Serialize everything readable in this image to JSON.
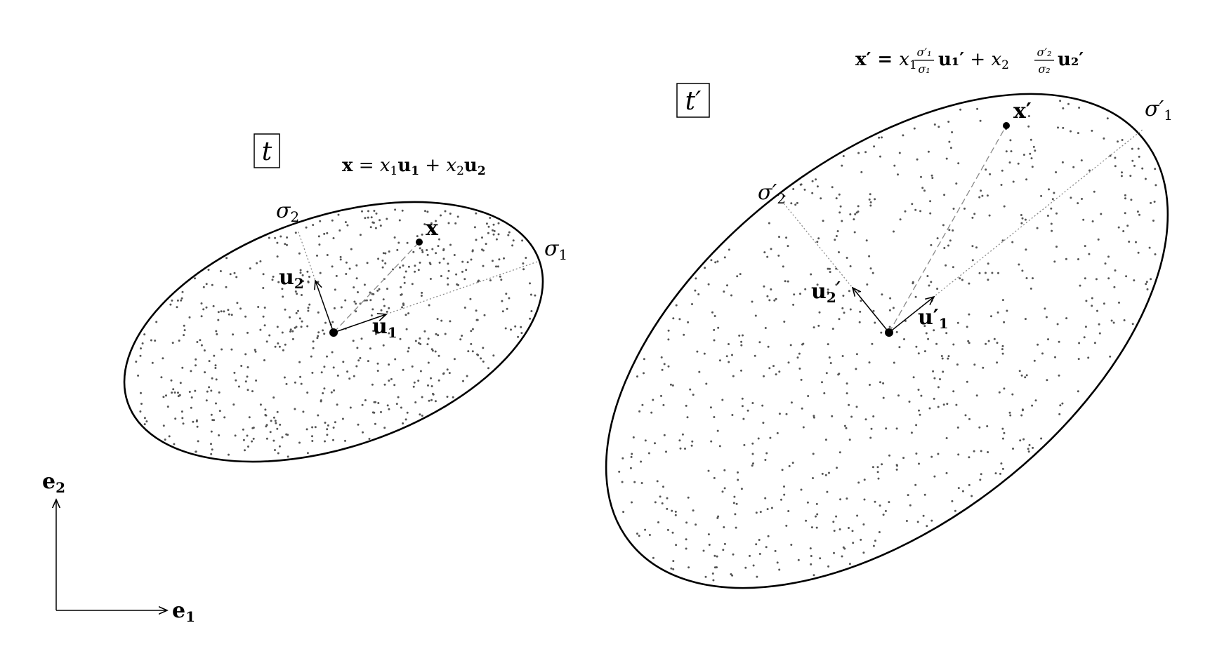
{
  "figure": {
    "left_panel": {
      "box_label": "t",
      "equation": {
        "x": "x",
        "eq": " = ",
        "x1": "x",
        "sub1": "1",
        "u1": "u",
        "u1sub": "1",
        "plus": " + ",
        "x2": "x",
        "sub2": "2",
        "u2": "u",
        "u2sub": "2"
      },
      "sigma1": {
        "sym": "σ",
        "sub": "1"
      },
      "sigma2": {
        "sym": "σ",
        "sub": "2"
      },
      "point_label": "x",
      "u1_label": {
        "sym": "u",
        "sub": "1"
      },
      "u2_label": {
        "sym": "u",
        "sub": "2"
      }
    },
    "right_panel": {
      "box_label": "t′",
      "equation": {
        "lhs": "x′ = ",
        "x1": "x",
        "sub1": "1",
        "frac1_num": "σ′₁",
        "frac1_den": "σ₁",
        "u1": "u₁′",
        "plus": " + ",
        "x2": "x",
        "sub2": "2",
        "frac2_num": "σ′₂",
        "frac2_den": "σ₂",
        "u2": "u₂′"
      },
      "sigma1": {
        "sym": "σ′",
        "sub": "1"
      },
      "sigma2": {
        "sym": "σ′",
        "sub": "2"
      },
      "point_label": "x′",
      "u1_label": {
        "sym": "u′",
        "sub": "1"
      },
      "u2_label": {
        "sym": "u",
        "sub": "2",
        "prime": "′"
      }
    },
    "axes": {
      "e1": {
        "sym": "e",
        "sub": "1"
      },
      "e2": {
        "sym": "e",
        "sub": "2"
      }
    },
    "colors": {
      "ink": "#000000",
      "dots": "#555555",
      "guide": "#888888"
    }
  }
}
